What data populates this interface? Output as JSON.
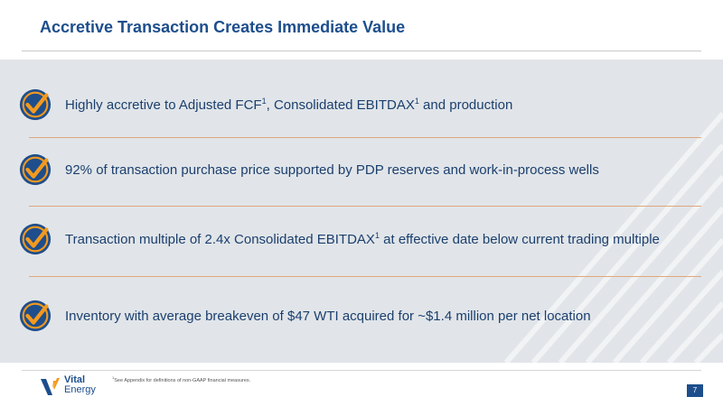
{
  "slide": {
    "title": "Accretive Transaction Creates Immediate Value",
    "bullets": [
      {
        "text": "Highly accretive to Adjusted FCF",
        "sup1": "1",
        "text2": ", Consolidated EBITDAX",
        "sup2": "1",
        "text3": " and production",
        "icon": "checkmark-badge-icon"
      },
      {
        "text": "92% of transaction purchase price supported by PDP reserves and work-in-process wells",
        "icon": "checkmark-badge-icon"
      },
      {
        "text": "Transaction multiple of 2.4x Consolidated EBITDAX",
        "sup1": "1",
        "text2": " at effective date below current trading multiple",
        "icon": "checkmark-badge-icon"
      },
      {
        "text": "Inventory with average breakeven of $47 WTI acquired for ~$1.4 million per net location",
        "icon": "checkmark-badge-icon"
      }
    ],
    "footnote": {
      "sup": "1",
      "text": "See Appendix for definitions of non-GAAP financial measures."
    },
    "logo": {
      "line1": "Vital",
      "line2": "Energy"
    },
    "page_number": "7"
  },
  "colors": {
    "title_blue": "#1d4e8c",
    "badge_blue": "#1f4e8c",
    "check_orange": "#f39a1e",
    "divider_orange": "#e0a77a",
    "panel_gray": "#e1e5e9"
  }
}
